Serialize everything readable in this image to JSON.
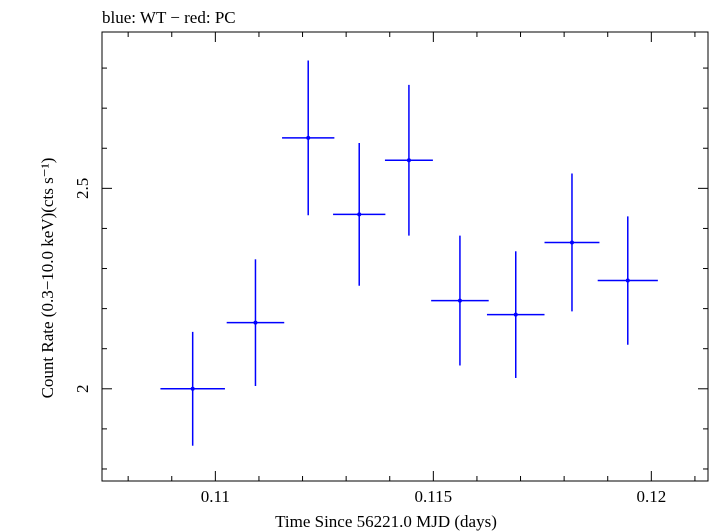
{
  "chart_data": {
    "type": "scatter",
    "title": "blue: WT − red: PC",
    "xlabel": "Time Since 56221.0 MJD (days)",
    "ylabel": "Count Rate (0.3−10.0 keV)(cts s⁻¹)",
    "xlim": [
      0.1074,
      0.1213
    ],
    "ylim": [
      1.77,
      2.89
    ],
    "x_ticks": [
      0.11,
      0.115,
      0.12
    ],
    "x_tick_labels": [
      "0.11",
      "0.115",
      "0.12"
    ],
    "y_ticks": [
      2,
      2.5
    ],
    "y_tick_labels": [
      "2",
      "2.5"
    ],
    "grid": false,
    "series": [
      {
        "color": "#0000ff",
        "points": [
          {
            "x": 0.10948,
            "xerr": 0.00074,
            "y": 2.0,
            "yerr": 0.142
          },
          {
            "x": 0.11092,
            "xerr": 0.00066,
            "y": 2.165,
            "yerr": 0.158
          },
          {
            "x": 0.11213,
            "xerr": 0.0006,
            "y": 2.626,
            "yerr": 0.193
          },
          {
            "x": 0.1133,
            "xerr": 0.0006,
            "y": 2.435,
            "yerr": 0.178
          },
          {
            "x": 0.11444,
            "xerr": 0.00055,
            "y": 2.57,
            "yerr": 0.188
          },
          {
            "x": 0.11561,
            "xerr": 0.00066,
            "y": 2.22,
            "yerr": 0.162
          },
          {
            "x": 0.11689,
            "xerr": 0.00066,
            "y": 2.185,
            "yerr": 0.158
          },
          {
            "x": 0.11818,
            "xerr": 0.00063,
            "y": 2.365,
            "yerr": 0.172
          },
          {
            "x": 0.11946,
            "xerr": 0.00069,
            "y": 2.27,
            "yerr": 0.16
          }
        ]
      }
    ]
  }
}
